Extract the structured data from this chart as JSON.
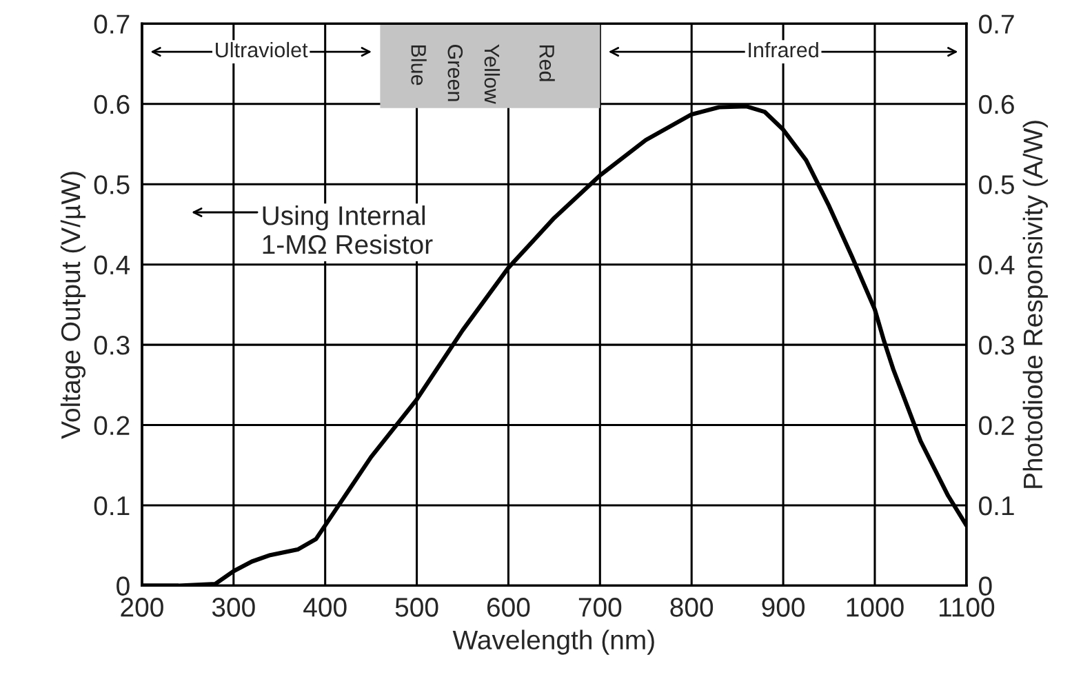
{
  "chart_data": {
    "type": "line",
    "xlabel": "Wavelength (nm)",
    "ylabel": "Voltage Output (V/µW)",
    "y2label": "Photodiode Responsivity (A/W)",
    "x": [
      200,
      240,
      280,
      300,
      320,
      340,
      370,
      390,
      400,
      450,
      500,
      550,
      600,
      650,
      700,
      750,
      800,
      830,
      860,
      880,
      900,
      925,
      950,
      975,
      1000,
      1010,
      1020,
      1050,
      1080,
      1100
    ],
    "series": [
      {
        "color": "#000000",
        "values": [
          0.0,
          0.0,
          0.002,
          0.018,
          0.03,
          0.038,
          0.045,
          0.058,
          0.075,
          0.16,
          0.232,
          0.318,
          0.396,
          0.458,
          0.511,
          0.555,
          0.587,
          0.596,
          0.597,
          0.59,
          0.568,
          0.53,
          0.473,
          0.41,
          0.344,
          0.305,
          0.27,
          0.18,
          0.112,
          0.075
        ]
      }
    ],
    "xlim": [
      200,
      1100
    ],
    "xticks": [
      200,
      300,
      400,
      500,
      600,
      700,
      800,
      900,
      1000,
      1100
    ],
    "ylim": [
      0,
      0.7
    ],
    "yticks": [
      0,
      0.1,
      0.2,
      0.3,
      0.4,
      0.5,
      0.6,
      0.7
    ],
    "y2lim": [
      0,
      0.7
    ],
    "y2ticks": [
      0,
      0.1,
      0.2,
      0.3,
      0.4,
      0.5,
      0.6,
      0.7
    ],
    "grid": true,
    "annotations": [
      "Ultraviolet",
      "Infrared",
      "Blue",
      "Green",
      "Yellow",
      "Red",
      "Using Internal\n1-MΩ Resistor"
    ]
  }
}
